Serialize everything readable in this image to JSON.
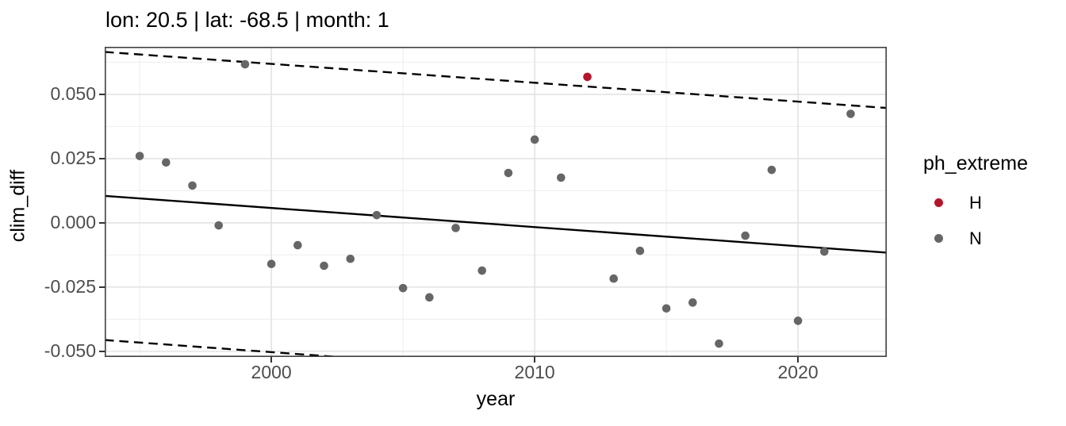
{
  "chart_data": {
    "type": "scatter",
    "title": "lon: 20.5 | lat: -68.5 | month: 1",
    "xlabel": "year",
    "ylabel": "clim_diff",
    "xlim": [
      1993.67,
      2023.37
    ],
    "ylim": [
      -0.0522,
      0.0685
    ],
    "grid": {
      "major_color": "#e3e3e3",
      "minor_color": "#f0f0f0",
      "x_major": [
        2000,
        2010,
        2020
      ],
      "x_minor": [
        1995,
        2005,
        2015
      ],
      "y_major": [
        0.05,
        0.025,
        0.0,
        -0.025,
        -0.05
      ],
      "y_minor": [
        0.0625,
        0.0375,
        0.0125,
        -0.0125,
        -0.0375
      ]
    },
    "x_ticks": [
      {
        "v": 2000,
        "label": "2000"
      },
      {
        "v": 2010,
        "label": "2010"
      },
      {
        "v": 2020,
        "label": "2020"
      }
    ],
    "y_ticks": [
      {
        "v": 0.05,
        "label": "0.050"
      },
      {
        "v": 0.025,
        "label": "0.025"
      },
      {
        "v": 0.0,
        "label": "0.000"
      },
      {
        "v": -0.025,
        "label": "-0.025"
      },
      {
        "v": -0.05,
        "label": "-0.050"
      }
    ],
    "series": [
      {
        "name": "N",
        "color": "#666666",
        "points": [
          {
            "x": 1995,
            "y": 0.026
          },
          {
            "x": 1996,
            "y": 0.0235
          },
          {
            "x": 1997,
            "y": 0.0145
          },
          {
            "x": 1998,
            "y": -0.001
          },
          {
            "x": 1999,
            "y": 0.0617
          },
          {
            "x": 2000,
            "y": -0.016
          },
          {
            "x": 2001,
            "y": -0.0087
          },
          {
            "x": 2002,
            "y": -0.0167
          },
          {
            "x": 2003,
            "y": -0.014
          },
          {
            "x": 2004,
            "y": 0.003
          },
          {
            "x": 2005,
            "y": -0.0254
          },
          {
            "x": 2006,
            "y": -0.029
          },
          {
            "x": 2007,
            "y": -0.002
          },
          {
            "x": 2008,
            "y": -0.0186
          },
          {
            "x": 2009,
            "y": 0.0194
          },
          {
            "x": 2010,
            "y": 0.0324
          },
          {
            "x": 2011,
            "y": 0.0176
          },
          {
            "x": 2013,
            "y": -0.0217
          },
          {
            "x": 2014,
            "y": -0.0109
          },
          {
            "x": 2015,
            "y": -0.0333
          },
          {
            "x": 2016,
            "y": -0.031
          },
          {
            "x": 2017,
            "y": -0.047
          },
          {
            "x": 2018,
            "y": -0.005
          },
          {
            "x": 2019,
            "y": 0.0206
          },
          {
            "x": 2020,
            "y": -0.0381
          },
          {
            "x": 2021,
            "y": -0.0112
          },
          {
            "x": 2022,
            "y": 0.0424
          }
        ]
      },
      {
        "name": "H",
        "color": "#b5152b",
        "points": [
          {
            "x": 2012,
            "y": 0.0568
          }
        ]
      }
    ],
    "lines": [
      {
        "name": "fit-line",
        "style": "solid",
        "color": "#000000",
        "x1": 1993.67,
        "y1": 0.0105,
        "x2": 2023.37,
        "y2": -0.0116
      },
      {
        "name": "upper-bound",
        "style": "dashed",
        "color": "#000000",
        "x1": 1993.67,
        "y1": 0.0665,
        "x2": 2023.37,
        "y2": 0.0447
      },
      {
        "name": "lower-bound",
        "style": "dashed",
        "color": "#000000",
        "x1": 1993.67,
        "y1": -0.0456,
        "x2": 2023.37,
        "y2": -0.0677
      }
    ],
    "legend": {
      "title": "ph_extreme",
      "items": [
        {
          "label": "H",
          "color": "#b5152b"
        },
        {
          "label": "N",
          "color": "#666666"
        }
      ]
    },
    "panel": {
      "border_color": "#404040",
      "background": "#ffffff"
    }
  }
}
